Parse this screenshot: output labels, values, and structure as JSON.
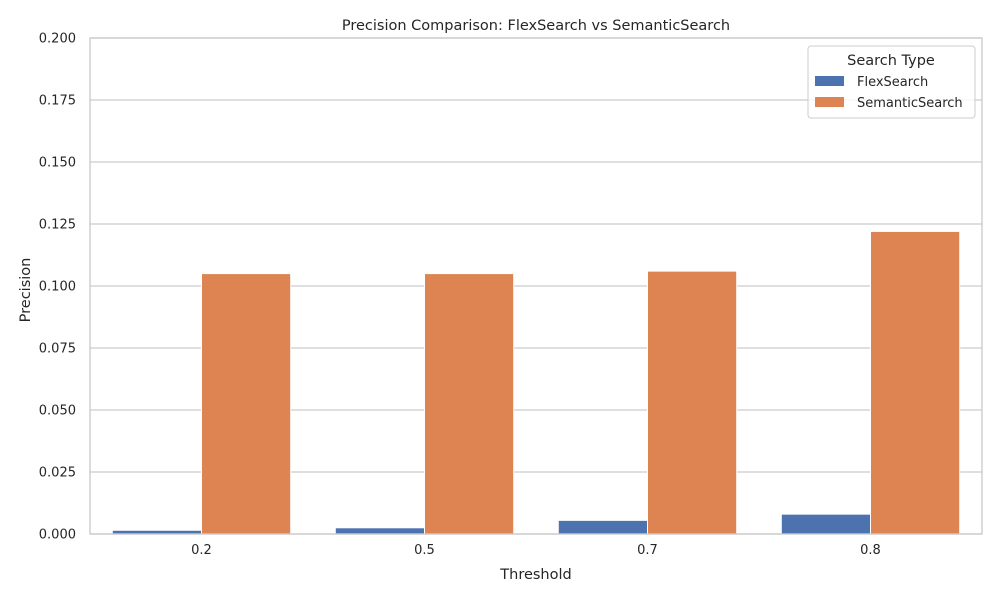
{
  "chart_data": {
    "type": "bar",
    "title": "Precision Comparison: FlexSearch vs SemanticSearch",
    "xlabel": "Threshold",
    "ylabel": "Precision",
    "categories": [
      "0.2",
      "0.5",
      "0.7",
      "0.8"
    ],
    "ylim": [
      0,
      0.2
    ],
    "yticks": [
      "0.000",
      "0.025",
      "0.050",
      "0.075",
      "0.100",
      "0.125",
      "0.150",
      "0.175",
      "0.200"
    ],
    "grid": true,
    "legend": {
      "title": "Search Type",
      "placement": "top-right"
    },
    "series": [
      {
        "name": "FlexSearch",
        "color": "#4c72b0",
        "values": [
          0.0015,
          0.0025,
          0.0055,
          0.008
        ]
      },
      {
        "name": "SemanticSearch",
        "color": "#dd8452",
        "values": [
          0.105,
          0.105,
          0.106,
          0.122
        ]
      }
    ]
  }
}
